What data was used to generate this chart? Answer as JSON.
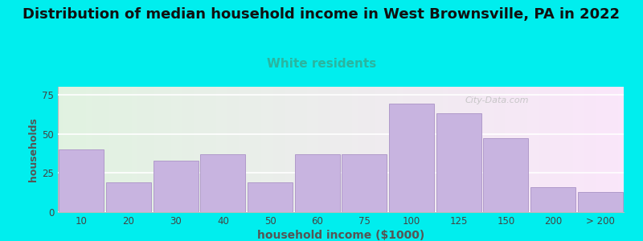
{
  "title": "Distribution of median household income in West Brownsville, PA in 2022",
  "subtitle": "White residents",
  "xlabel": "household income ($1000)",
  "ylabel": "households",
  "background_outer": "#00EEEE",
  "bar_color": "#c8b4e0",
  "bar_edge_color": "#b09aca",
  "title_fontsize": 13,
  "subtitle_fontsize": 11,
  "subtitle_color": "#2ab5a0",
  "xlabel_fontsize": 10,
  "ylabel_fontsize": 9,
  "tick_labels": [
    "10",
    "20",
    "30",
    "40",
    "50",
    "60",
    "75",
    "100",
    "125",
    "150",
    "200",
    "> 200"
  ],
  "bar_heights": [
    40,
    19,
    33,
    37,
    19,
    37,
    37,
    69,
    63,
    47,
    16,
    13
  ],
  "ylim": [
    0,
    80
  ],
  "yticks": [
    0,
    25,
    50,
    75
  ],
  "watermark": "City-Data.com"
}
